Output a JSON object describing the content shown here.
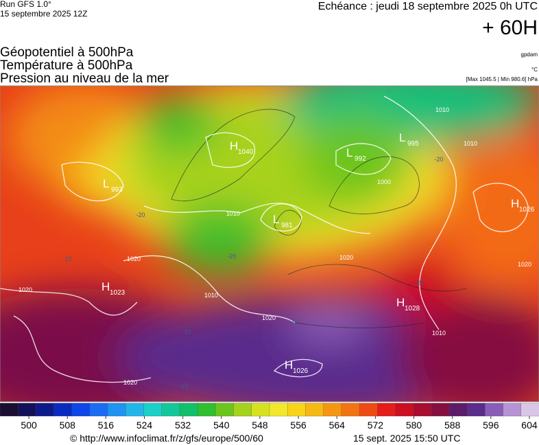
{
  "header": {
    "run": "Run GFS 1.0°",
    "run_date": "15 septembre 2025 12Z",
    "valid": "Echéance : jeudi 18 septembre 2025 0h UTC",
    "lead": "+ 60H"
  },
  "titles": [
    "Géopotentiel à 500hPa",
    "Température à 500hPa",
    "Pression au niveau de la mer"
  ],
  "units": [
    "gpdam",
    "°C",
    "[Max 1045.5 | Min 980.6] hPa"
  ],
  "pressure_centers": [
    {
      "letter": "L",
      "value": 993
    },
    {
      "letter": "H",
      "value": 1040
    },
    {
      "letter": "L",
      "value": 992
    },
    {
      "letter": "L",
      "value": 995
    },
    {
      "letter": "H",
      "value": 1026
    },
    {
      "letter": "L",
      "value": 981
    },
    {
      "letter": "H",
      "value": 1023
    },
    {
      "letter": "H",
      "value": 1028
    },
    {
      "letter": "H",
      "value": 1026
    }
  ],
  "isobar_labels": [
    1010,
    1020,
    1020,
    1010,
    1020,
    1010,
    1020,
    1010,
    1000,
    1020,
    1020,
    1010
  ],
  "temperature_labels": [
    -20,
    -20,
    -10,
    -20,
    -10,
    -10,
    -10,
    -20
  ],
  "colorbar": {
    "range": [
      494,
      606
    ],
    "ticks": [
      500,
      508,
      516,
      524,
      532,
      540,
      548,
      556,
      564,
      572,
      580,
      588,
      596,
      604
    ],
    "colors": [
      "#1a0f30",
      "#15105a",
      "#0f1a8a",
      "#0b2bc0",
      "#0d47e8",
      "#1a6cf2",
      "#1f93f0",
      "#22b6e8",
      "#1ccfc8",
      "#14c79a",
      "#12bf6a",
      "#2fbf2f",
      "#6cc51d",
      "#a5d21c",
      "#d6e21e",
      "#f2e82b",
      "#f7d418",
      "#f6b812",
      "#f59612",
      "#f37312",
      "#ee4a14",
      "#e41d1a",
      "#cc1022",
      "#a80d30",
      "#851040",
      "#5c1c6a",
      "#5a2c8c",
      "#8a5db8",
      "#b792d4",
      "#d9c5e6"
    ]
  },
  "footer": {
    "source": "© http://www.infoclimat.fr/z/gfs/europe/500/60",
    "generated": "15 sept. 2025 15:50 UTC"
  }
}
